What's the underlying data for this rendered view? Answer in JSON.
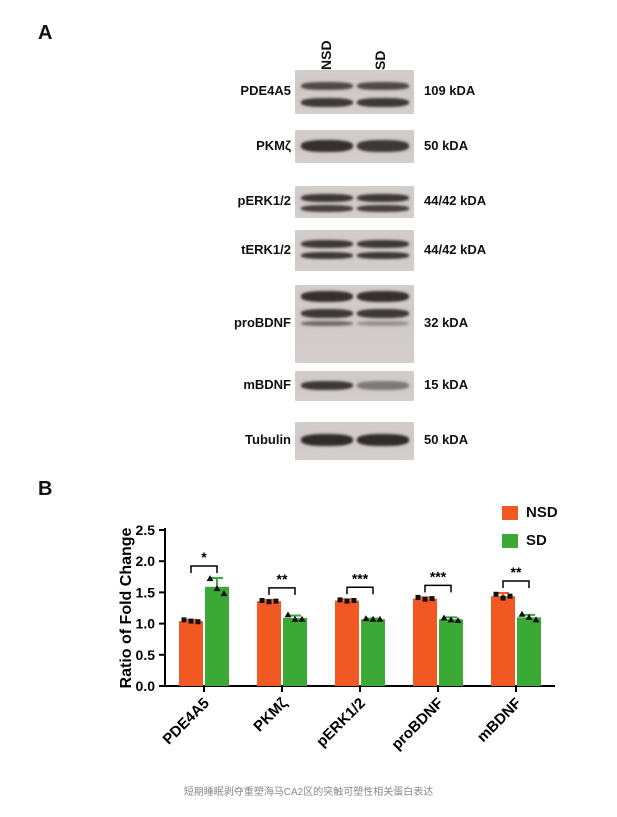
{
  "panel_a": {
    "label": "A",
    "lanes": [
      "NSD",
      "SD"
    ],
    "rows": [
      {
        "protein": "PDE4A5",
        "kda": "109 kDA"
      },
      {
        "protein": "PKMζ",
        "kda": "50 kDA"
      },
      {
        "protein": "pERK1/2",
        "kda": "44/42 kDA"
      },
      {
        "protein": "tERK1/2",
        "kda": "44/42 kDA"
      },
      {
        "protein": "proBDNF",
        "kda": "32 kDA"
      },
      {
        "protein": "mBDNF",
        "kda": "15 kDA"
      },
      {
        "protein": "Tubulin",
        "kda": "50 kDA"
      }
    ]
  },
  "panel_b": {
    "label": "B"
  },
  "chart_data": {
    "type": "bar",
    "ylabel": "Ratio of Fold Change",
    "xlabel": "",
    "categories": [
      "PDE4A5",
      "PKMζ",
      "pERK1/2",
      "proBDNF",
      "mBDNF"
    ],
    "ylim": [
      0,
      2.5
    ],
    "yticks": [
      "0.0",
      "0.5",
      "1.0",
      "1.5",
      "2.0",
      "2.5"
    ],
    "series": [
      {
        "name": "NSD",
        "color": "#f05a22",
        "values": [
          1.04,
          1.36,
          1.37,
          1.4,
          1.44
        ],
        "errors": [
          0.02,
          0.02,
          0.02,
          0.02,
          0.05
        ],
        "points": [
          [
            1.06,
            1.04,
            1.03
          ],
          [
            1.37,
            1.35,
            1.36
          ],
          [
            1.38,
            1.36,
            1.37
          ],
          [
            1.42,
            1.39,
            1.4
          ],
          [
            1.47,
            1.41,
            1.44
          ]
        ]
      },
      {
        "name": "SD",
        "color": "#3aa935",
        "values": [
          1.59,
          1.09,
          1.07,
          1.07,
          1.1
        ],
        "errors": [
          0.14,
          0.04,
          0.01,
          0.03,
          0.04
        ],
        "points": [
          [
            1.72,
            1.56,
            1.48
          ],
          [
            1.14,
            1.07,
            1.07
          ],
          [
            1.08,
            1.07,
            1.07
          ],
          [
            1.09,
            1.06,
            1.05
          ],
          [
            1.15,
            1.1,
            1.06
          ]
        ]
      }
    ],
    "significance": [
      "*",
      "**",
      "***",
      "***",
      "**"
    ],
    "legend_position": "top-right"
  },
  "caption": "短期睡眠剥夺重塑海马CA2区的突触可塑性相关蛋白表达"
}
